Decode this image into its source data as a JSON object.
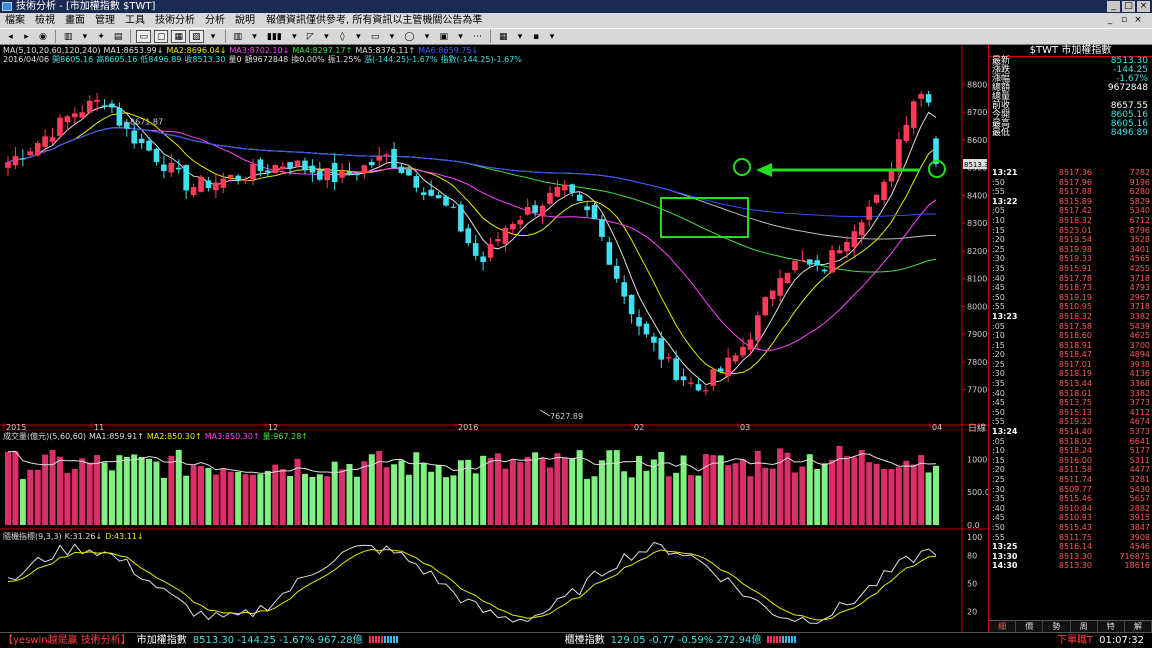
{
  "window": {
    "title": "技術分析 - [市加權指數 $TWT]",
    "buttons": [
      "_",
      "□",
      "×"
    ]
  },
  "menu": {
    "items": [
      "檔案",
      "檢視",
      "畫面",
      "管理",
      "工具",
      "技術分析",
      "分析",
      "說明"
    ],
    "notice": "報價資訊僅供參考, 所有資訊以主管機關公告為準",
    "doc_buttons": [
      "_",
      "▫",
      "×"
    ]
  },
  "toolbar": {
    "items": [
      "◂",
      "▸",
      "◉",
      "▥",
      "▾",
      "✦",
      "▤",
      "▭",
      "▢",
      "▦",
      "▨",
      "▾",
      "▥",
      "▾",
      "▮▮▮",
      "▾",
      "◸",
      "▾",
      "◊",
      "▾",
      "▭",
      "▾",
      "◯",
      "▾",
      "▣",
      "▾",
      "⋯",
      "▦",
      "▾",
      "▪",
      "▾"
    ]
  },
  "price_panel": {
    "symbol": "市加權指數",
    "legend_ma": [
      {
        "text": "MA(5,10,20,60,120,240)",
        "color": "#dddddd"
      },
      {
        "text": "MA1:8653.99↓",
        "color": "#dddddd"
      },
      {
        "text": "MA2:8696.04↓",
        "color": "#e8e800"
      },
      {
        "text": "MA3:8702.10↓",
        "color": "#ff40ff"
      },
      {
        "text": "MA4:8297.17↑",
        "color": "#40e040"
      },
      {
        "text": "MA5:8376.11↑",
        "color": "#dddddd"
      },
      {
        "text": "MA6:8659.75↓",
        "color": "#4060ff"
      }
    ],
    "legend_ohlc": [
      {
        "text": "2016/04/06",
        "color": "#dddddd"
      },
      {
        "text": "開8605.16",
        "color": "#40e0e0"
      },
      {
        "text": "高8605.16",
        "color": "#40e0e0"
      },
      {
        "text": "低8496.89",
        "color": "#40e0e0"
      },
      {
        "text": "收8513.30",
        "color": "#40e0e0"
      },
      {
        "text": "量0",
        "color": "#dddddd"
      },
      {
        "text": "額9672848",
        "color": "#dddddd"
      },
      {
        "text": "換0.00%",
        "color": "#dddddd"
      },
      {
        "text": "振1.25%",
        "color": "#dddddd"
      },
      {
        "text": "漲(-144.25)-1.67%",
        "color": "#40e0e0"
      },
      {
        "text": "指數(-144.25)-1.67%",
        "color": "#40e0e0"
      }
    ],
    "y_ticks": [
      "8800.0",
      "8700.0",
      "8600.0",
      "8500.0",
      "8400.0",
      "8300.0",
      "8200.0",
      "8100.0",
      "8000.0",
      "7900.0",
      "7800.0",
      "7700.0"
    ],
    "last_price_tag": "8513.30",
    "high_label": "8671.87",
    "low_label": "7627.89",
    "x_labels": [
      "2015",
      "11",
      "12",
      "2016",
      "02",
      "03",
      "04"
    ],
    "x_corner": "日線"
  },
  "volume_panel": {
    "legend": [
      {
        "text": "成交量(億元)(5,60,60)",
        "color": "#dddddd"
      },
      {
        "text": "MA1:859.91↑",
        "color": "#dddddd"
      },
      {
        "text": "MA2:850.30↑",
        "color": "#e8e800"
      },
      {
        "text": "MA3:850.30↑",
        "color": "#ff40ff"
      },
      {
        "text": "量:967.28↑",
        "color": "#40e040"
      }
    ],
    "y_ticks": [
      "1000.0",
      "500.0",
      "0.0"
    ]
  },
  "kd_panel": {
    "legend": [
      {
        "text": "隨機指標(9,3,3)",
        "color": "#dddddd"
      },
      {
        "text": "K:31.26↓",
        "color": "#dddddd"
      },
      {
        "text": "D:43.11↓",
        "color": "#e8e800"
      }
    ],
    "y_ticks": [
      "100",
      "80",
      "50",
      "20"
    ]
  },
  "quote": {
    "title": "$TWT 市加權指數",
    "rows": [
      {
        "label": "最新",
        "value": "8513.30",
        "color": "#40e0e0"
      },
      {
        "label": "漲跌",
        "value": "-144.25",
        "color": "#40e0e0"
      },
      {
        "label": "漲幅",
        "value": "-1.67%",
        "color": "#40e0e0"
      },
      {
        "label": "總額",
        "value": "9672848",
        "color": "#ffffff"
      },
      {
        "label": "總量",
        "value": "",
        "color": "#ffffff"
      },
      {
        "label": "前收",
        "value": "8657.55",
        "color": "#ffffff"
      },
      {
        "label": "今開",
        "value": "8605.16",
        "color": "#40e0e0"
      },
      {
        "label": "最高",
        "value": "8605.16",
        "color": "#40e0e0"
      },
      {
        "label": "最低",
        "value": "8496.89",
        "color": "#40e0e0"
      }
    ]
  },
  "ticks": [
    {
      "t": "13:21",
      "p": "8517.36",
      "v": "7782",
      "hour": true
    },
    {
      "t": ":50",
      "p": "8517.96",
      "v": "9196"
    },
    {
      "t": ":55",
      "p": "8517.88",
      "v": "6280"
    },
    {
      "t": "13:22",
      "p": "8515.89",
      "v": "5829",
      "hour": true
    },
    {
      "t": ":05",
      "p": "8517.42",
      "v": "5340"
    },
    {
      "t": ":10",
      "p": "8518.32",
      "v": "6712"
    },
    {
      "t": ":15",
      "p": "8523.01",
      "v": "8796"
    },
    {
      "t": ":20",
      "p": "8519.54",
      "v": "3528"
    },
    {
      "t": ":25",
      "p": "8519.98",
      "v": "3401"
    },
    {
      "t": ":30",
      "p": "8519.33",
      "v": "4565"
    },
    {
      "t": ":35",
      "p": "8515.91",
      "v": "4255"
    },
    {
      "t": ":40",
      "p": "8517.78",
      "v": "3718"
    },
    {
      "t": ":45",
      "p": "8518.73",
      "v": "4793"
    },
    {
      "t": ":50",
      "p": "8519.19",
      "v": "2967"
    },
    {
      "t": ":55",
      "p": "8510.95",
      "v": "3718"
    },
    {
      "t": "13:23",
      "p": "8518.32",
      "v": "3382",
      "hour": true
    },
    {
      "t": ":05",
      "p": "8517.58",
      "v": "5439"
    },
    {
      "t": ":10",
      "p": "8518.60",
      "v": "4625"
    },
    {
      "t": ":15",
      "p": "8518.91",
      "v": "3700"
    },
    {
      "t": ":20",
      "p": "8518.47",
      "v": "4894"
    },
    {
      "t": ":25",
      "p": "8517.01",
      "v": "3938"
    },
    {
      "t": ":30",
      "p": "8518.19",
      "v": "4136"
    },
    {
      "t": ":35",
      "p": "8513.44",
      "v": "3368"
    },
    {
      "t": ":40",
      "p": "8518.01",
      "v": "3382"
    },
    {
      "t": ":45",
      "p": "8513.75",
      "v": "3773"
    },
    {
      "t": ":50",
      "p": "8515.13",
      "v": "4112"
    },
    {
      "t": ":55",
      "p": "8519.22",
      "v": "4674"
    },
    {
      "t": "13:24",
      "p": "8514.40",
      "v": "5373",
      "hour": true
    },
    {
      "t": ":05",
      "p": "8518.02",
      "v": "6641"
    },
    {
      "t": ":10",
      "p": "8518.24",
      "v": "5177"
    },
    {
      "t": ":15",
      "p": "8516.00",
      "v": "5311"
    },
    {
      "t": ":20",
      "p": "8511.58",
      "v": "4477"
    },
    {
      "t": ":25",
      "p": "8511.74",
      "v": "3281"
    },
    {
      "t": ":30",
      "p": "8509.77",
      "v": "5430"
    },
    {
      "t": ":35",
      "p": "8515.46",
      "v": "5657"
    },
    {
      "t": ":40",
      "p": "8510.84",
      "v": "2882"
    },
    {
      "t": ":45",
      "p": "8510.93",
      "v": "3915"
    },
    {
      "t": ":50",
      "p": "8515.43",
      "v": "3847"
    },
    {
      "t": ":55",
      "p": "8511.75",
      "v": "3908"
    },
    {
      "t": "13:25",
      "p": "8516.14",
      "v": "4546",
      "hour": true
    },
    {
      "t": "13:30",
      "p": "8513.30",
      "v": "716875",
      "hour": true
    },
    {
      "t": "14:30",
      "p": "8513.30",
      "v": "18616",
      "hour": true
    }
  ],
  "right_tabs": [
    {
      "label": "細",
      "active": true
    },
    {
      "label": "價",
      "active": false
    },
    {
      "label": "勢",
      "active": false
    },
    {
      "label": "周",
      "active": false
    },
    {
      "label": "特",
      "active": false
    },
    {
      "label": "解",
      "active": false
    }
  ],
  "status": {
    "app": "【yeswin越是贏 技術分析】",
    "index1_name": "市加權指數",
    "index1_values": "8513.30 -144.25 -1.67% 967.28億",
    "index2_name": "櫃檯指數",
    "index2_values": "129.05 -0.77 -0.59% 272.94億",
    "flag": "下單職T",
    "clock": "01:07:32"
  },
  "colors": {
    "up": "#ff3a5a",
    "down": "#40e0f0",
    "vol_up": "#d83068",
    "vol_down": "#80f080",
    "annotation": "#20e020"
  }
}
